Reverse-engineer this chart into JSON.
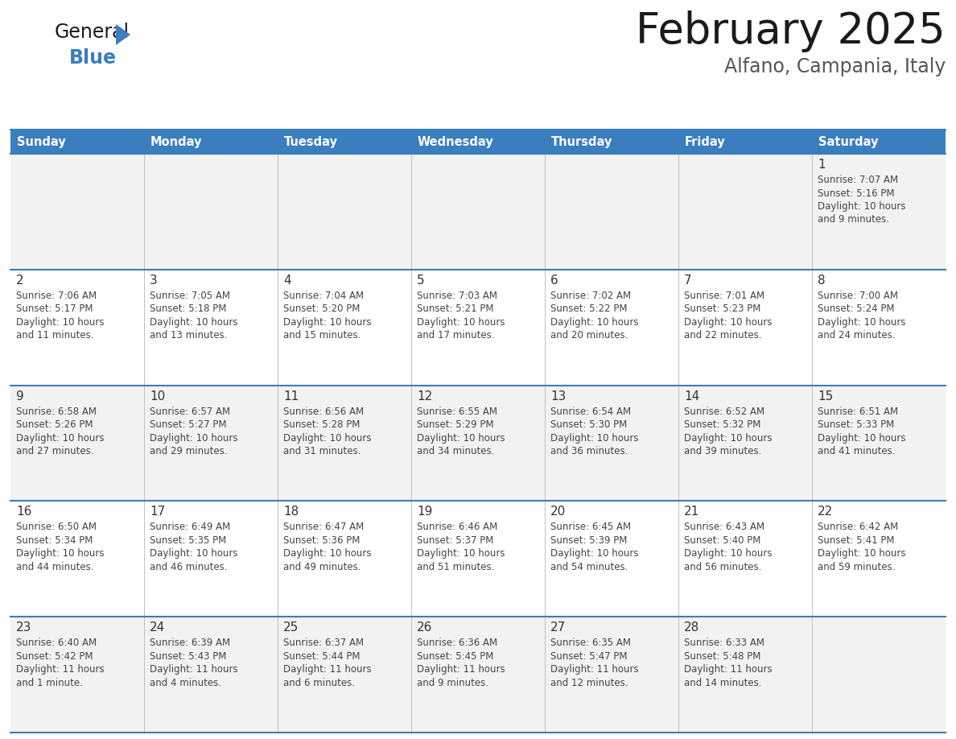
{
  "title": "February 2025",
  "subtitle": "Alfano, Campania, Italy",
  "header_bg": "#3a7ebf",
  "header_text": "#ffffff",
  "cell_bg_light": "#f2f2f2",
  "cell_bg_white": "#ffffff",
  "line_color": "#3a7ebf",
  "text_color": "#444444",
  "day_num_color": "#333333",
  "day_headers": [
    "Sunday",
    "Monday",
    "Tuesday",
    "Wednesday",
    "Thursday",
    "Friday",
    "Saturday"
  ],
  "days": [
    {
      "day": 1,
      "col": 6,
      "row": 0,
      "sunrise": "7:07 AM",
      "sunset": "5:16 PM",
      "daylight": "10 hours",
      "daylight2": "and 9 minutes."
    },
    {
      "day": 2,
      "col": 0,
      "row": 1,
      "sunrise": "7:06 AM",
      "sunset": "5:17 PM",
      "daylight": "10 hours",
      "daylight2": "and 11 minutes."
    },
    {
      "day": 3,
      "col": 1,
      "row": 1,
      "sunrise": "7:05 AM",
      "sunset": "5:18 PM",
      "daylight": "10 hours",
      "daylight2": "and 13 minutes."
    },
    {
      "day": 4,
      "col": 2,
      "row": 1,
      "sunrise": "7:04 AM",
      "sunset": "5:20 PM",
      "daylight": "10 hours",
      "daylight2": "and 15 minutes."
    },
    {
      "day": 5,
      "col": 3,
      "row": 1,
      "sunrise": "7:03 AM",
      "sunset": "5:21 PM",
      "daylight": "10 hours",
      "daylight2": "and 17 minutes."
    },
    {
      "day": 6,
      "col": 4,
      "row": 1,
      "sunrise": "7:02 AM",
      "sunset": "5:22 PM",
      "daylight": "10 hours",
      "daylight2": "and 20 minutes."
    },
    {
      "day": 7,
      "col": 5,
      "row": 1,
      "sunrise": "7:01 AM",
      "sunset": "5:23 PM",
      "daylight": "10 hours",
      "daylight2": "and 22 minutes."
    },
    {
      "day": 8,
      "col": 6,
      "row": 1,
      "sunrise": "7:00 AM",
      "sunset": "5:24 PM",
      "daylight": "10 hours",
      "daylight2": "and 24 minutes."
    },
    {
      "day": 9,
      "col": 0,
      "row": 2,
      "sunrise": "6:58 AM",
      "sunset": "5:26 PM",
      "daylight": "10 hours",
      "daylight2": "and 27 minutes."
    },
    {
      "day": 10,
      "col": 1,
      "row": 2,
      "sunrise": "6:57 AM",
      "sunset": "5:27 PM",
      "daylight": "10 hours",
      "daylight2": "and 29 minutes."
    },
    {
      "day": 11,
      "col": 2,
      "row": 2,
      "sunrise": "6:56 AM",
      "sunset": "5:28 PM",
      "daylight": "10 hours",
      "daylight2": "and 31 minutes."
    },
    {
      "day": 12,
      "col": 3,
      "row": 2,
      "sunrise": "6:55 AM",
      "sunset": "5:29 PM",
      "daylight": "10 hours",
      "daylight2": "and 34 minutes."
    },
    {
      "day": 13,
      "col": 4,
      "row": 2,
      "sunrise": "6:54 AM",
      "sunset": "5:30 PM",
      "daylight": "10 hours",
      "daylight2": "and 36 minutes."
    },
    {
      "day": 14,
      "col": 5,
      "row": 2,
      "sunrise": "6:52 AM",
      "sunset": "5:32 PM",
      "daylight": "10 hours",
      "daylight2": "and 39 minutes."
    },
    {
      "day": 15,
      "col": 6,
      "row": 2,
      "sunrise": "6:51 AM",
      "sunset": "5:33 PM",
      "daylight": "10 hours",
      "daylight2": "and 41 minutes."
    },
    {
      "day": 16,
      "col": 0,
      "row": 3,
      "sunrise": "6:50 AM",
      "sunset": "5:34 PM",
      "daylight": "10 hours",
      "daylight2": "and 44 minutes."
    },
    {
      "day": 17,
      "col": 1,
      "row": 3,
      "sunrise": "6:49 AM",
      "sunset": "5:35 PM",
      "daylight": "10 hours",
      "daylight2": "and 46 minutes."
    },
    {
      "day": 18,
      "col": 2,
      "row": 3,
      "sunrise": "6:47 AM",
      "sunset": "5:36 PM",
      "daylight": "10 hours",
      "daylight2": "and 49 minutes."
    },
    {
      "day": 19,
      "col": 3,
      "row": 3,
      "sunrise": "6:46 AM",
      "sunset": "5:37 PM",
      "daylight": "10 hours",
      "daylight2": "and 51 minutes."
    },
    {
      "day": 20,
      "col": 4,
      "row": 3,
      "sunrise": "6:45 AM",
      "sunset": "5:39 PM",
      "daylight": "10 hours",
      "daylight2": "and 54 minutes."
    },
    {
      "day": 21,
      "col": 5,
      "row": 3,
      "sunrise": "6:43 AM",
      "sunset": "5:40 PM",
      "daylight": "10 hours",
      "daylight2": "and 56 minutes."
    },
    {
      "day": 22,
      "col": 6,
      "row": 3,
      "sunrise": "6:42 AM",
      "sunset": "5:41 PM",
      "daylight": "10 hours",
      "daylight2": "and 59 minutes."
    },
    {
      "day": 23,
      "col": 0,
      "row": 4,
      "sunrise": "6:40 AM",
      "sunset": "5:42 PM",
      "daylight": "11 hours",
      "daylight2": "and 1 minute."
    },
    {
      "day": 24,
      "col": 1,
      "row": 4,
      "sunrise": "6:39 AM",
      "sunset": "5:43 PM",
      "daylight": "11 hours",
      "daylight2": "and 4 minutes."
    },
    {
      "day": 25,
      "col": 2,
      "row": 4,
      "sunrise": "6:37 AM",
      "sunset": "5:44 PM",
      "daylight": "11 hours",
      "daylight2": "and 6 minutes."
    },
    {
      "day": 26,
      "col": 3,
      "row": 4,
      "sunrise": "6:36 AM",
      "sunset": "5:45 PM",
      "daylight": "11 hours",
      "daylight2": "and 9 minutes."
    },
    {
      "day": 27,
      "col": 4,
      "row": 4,
      "sunrise": "6:35 AM",
      "sunset": "5:47 PM",
      "daylight": "11 hours",
      "daylight2": "and 12 minutes."
    },
    {
      "day": 28,
      "col": 5,
      "row": 4,
      "sunrise": "6:33 AM",
      "sunset": "5:48 PM",
      "daylight": "11 hours",
      "daylight2": "and 14 minutes."
    }
  ],
  "num_rows": 5,
  "num_cols": 7,
  "fig_width": 11.88,
  "fig_height": 9.18,
  "dpi": 100
}
